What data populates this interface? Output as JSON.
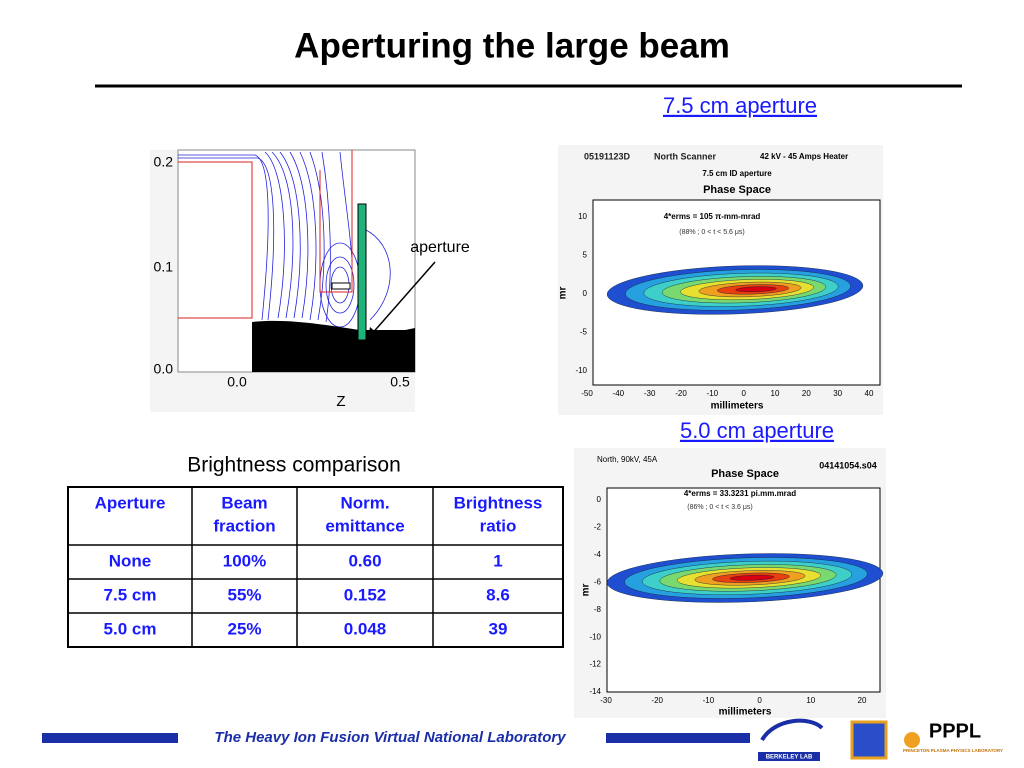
{
  "title": "Aperturing the large beam",
  "sim_plot": {
    "yticks": [
      "0.2",
      "0.1",
      "0.0"
    ],
    "xticks": [
      "0.0",
      "0.5"
    ],
    "xlabel": "Z",
    "annotation": "aperture"
  },
  "plot1": {
    "link": "7.5 cm aperture",
    "header": [
      "05191123D",
      "North Scanner",
      "42 kV - 45 Amps Heater"
    ],
    "subtitle": "7.5 cm ID aperture",
    "title": "Phase Space",
    "note1": "4*erms = 105 π-mm-mrad",
    "note2": "(88% ; 0 < t < 5.6 μs)",
    "ylabel": "mr",
    "xlabel": "millimeters",
    "yticks": [
      10,
      5,
      0,
      -5,
      -10
    ],
    "xticks": [
      -50,
      -40,
      -30,
      -20,
      -10,
      0,
      10,
      20,
      30,
      40
    ]
  },
  "plot2": {
    "link": "5.0 cm aperture",
    "header": [
      "North, 90kV, 45A",
      "04141054.s04"
    ],
    "title": "Phase Space",
    "note1": "4*erms = 33.3231  pi.mm.mrad",
    "note2": "(86% ; 0 < t < 3.6 μs)",
    "ylabel": "mr",
    "xlabel": "millimeters",
    "yticks": [
      0,
      -2,
      -4,
      -6,
      -8,
      -10,
      -12,
      -14
    ],
    "xticks": [
      -30,
      -20,
      -10,
      0,
      10,
      20
    ]
  },
  "table": {
    "caption": "Brightness comparison",
    "header": [
      [
        "Aperture"
      ],
      [
        "Beam",
        "fraction"
      ],
      [
        "Norm.",
        "emittance"
      ],
      [
        "Brightness",
        "ratio"
      ]
    ],
    "rows": [
      [
        "None",
        "100%",
        "0.60",
        "1"
      ],
      [
        "7.5 cm",
        "55%",
        "0.152",
        "8.6"
      ],
      [
        "5.0 cm",
        "25%",
        "0.048",
        "39"
      ]
    ]
  },
  "footer": {
    "text": "The Heavy Ion Fusion Virtual National Laboratory",
    "logo1": "BERKELEY LAB",
    "logo2": "PPPL",
    "logo2_sub": "PRINCETON PLASMA PHYSICS LABORATORY"
  }
}
